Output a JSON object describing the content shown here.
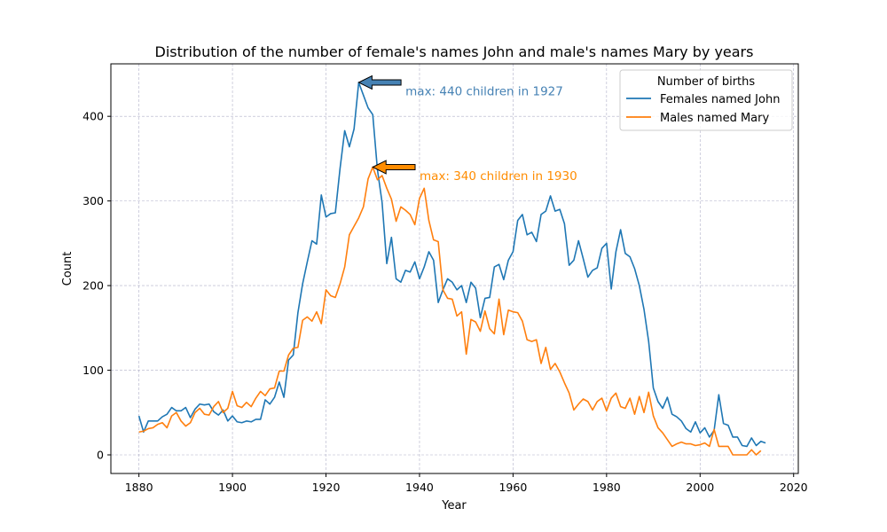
{
  "chart_data": {
    "type": "line",
    "title": "Distribution of the number of female's names John and male's names Mary by years",
    "xlabel": "Year",
    "ylabel": "Count",
    "xlim": [
      1874,
      2021
    ],
    "ylim": [
      -22,
      462
    ],
    "xticks": [
      1880,
      1900,
      1920,
      1940,
      1960,
      1980,
      2000,
      2020
    ],
    "yticks": [
      0,
      100,
      200,
      300,
      400
    ],
    "grid": true,
    "legend": {
      "title": "Number of births",
      "placement": "top-right"
    },
    "x_start": 1880,
    "x_step": 1,
    "series": [
      {
        "name": "Females named John",
        "color": "#1f77b4",
        "values": [
          46,
          27,
          40,
          40,
          40,
          45,
          48,
          56,
          52,
          52,
          56,
          44,
          54,
          60,
          59,
          60,
          51,
          47,
          53,
          40,
          46,
          39,
          38,
          40,
          39,
          42,
          42,
          65,
          60,
          68,
          86,
          68,
          112,
          118,
          168,
          202,
          228,
          253,
          249,
          307,
          281,
          285,
          286,
          338,
          383,
          364,
          385,
          440,
          425,
          410,
          402,
          337,
          298,
          226,
          257,
          208,
          204,
          218,
          216,
          228,
          208,
          222,
          240,
          230,
          180,
          195,
          208,
          204,
          195,
          200,
          180,
          204,
          197,
          162,
          185,
          186,
          222,
          225,
          207,
          230,
          240,
          277,
          284,
          260,
          263,
          252,
          284,
          288,
          306,
          288,
          290,
          273,
          224,
          230,
          253,
          232,
          210,
          218,
          221,
          244,
          250,
          196,
          240,
          266,
          238,
          234,
          220,
          200,
          172,
          134,
          79,
          63,
          55,
          68,
          48,
          45,
          40,
          31,
          27,
          39,
          26,
          32,
          21,
          29,
          71,
          37,
          35,
          21,
          21,
          11,
          10,
          20,
          11,
          16,
          14
        ]
      },
      {
        "name": "Males named Mary",
        "color": "#ff7f0e",
        "values": [
          27,
          28,
          31,
          32,
          36,
          38,
          32,
          46,
          50,
          40,
          34,
          38,
          50,
          55,
          48,
          47,
          57,
          63,
          50,
          55,
          75,
          58,
          56,
          62,
          57,
          67,
          75,
          70,
          78,
          79,
          99,
          99,
          118,
          126,
          127,
          159,
          163,
          158,
          169,
          155,
          195,
          188,
          186,
          202,
          222,
          260,
          270,
          280,
          293,
          326,
          340,
          325,
          330,
          315,
          302,
          276,
          293,
          289,
          284,
          272,
          303,
          315,
          277,
          254,
          252,
          195,
          185,
          184,
          164,
          169,
          119,
          160,
          157,
          146,
          170,
          149,
          143,
          184,
          142,
          171,
          169,
          168,
          158,
          136,
          134,
          136,
          108,
          127,
          101,
          108,
          98,
          85,
          73,
          53,
          60,
          66,
          63,
          53,
          63,
          67,
          52,
          67,
          73,
          57,
          55,
          67,
          48,
          69,
          50,
          74,
          46,
          32,
          26,
          18,
          10,
          13,
          15,
          13,
          13,
          11,
          12,
          14,
          10,
          30,
          10,
          10,
          10,
          0,
          0,
          0,
          0,
          6,
          0,
          5
        ]
      }
    ],
    "annotations": [
      {
        "text": "max: 440 children in 1927",
        "x": 1927,
        "y": 440,
        "text_x": 1937,
        "text_y": 430,
        "color": "#4682b4"
      },
      {
        "text": "max: 340 children in 1930",
        "x": 1930,
        "y": 340,
        "text_x": 1940,
        "text_y": 330,
        "color": "#ff8c00"
      }
    ]
  }
}
